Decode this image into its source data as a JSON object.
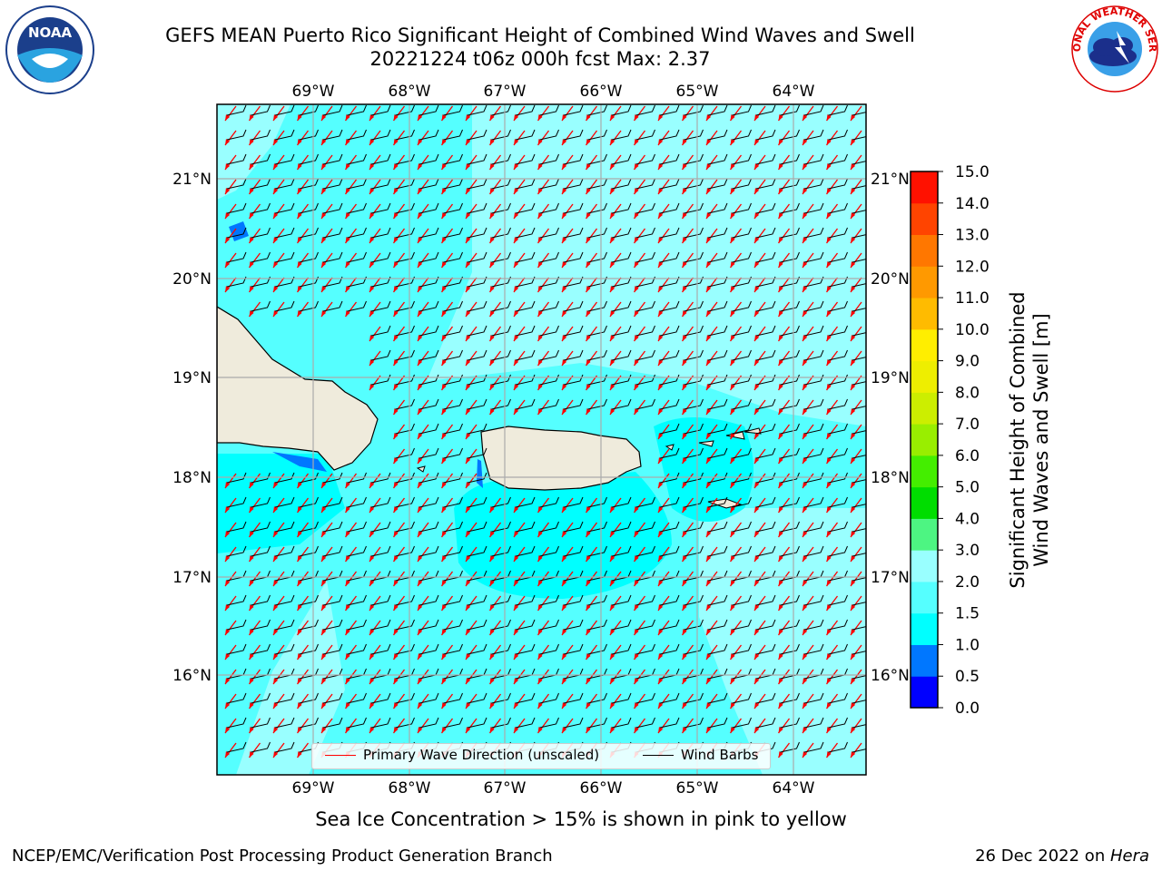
{
  "header": {
    "title_line1": "GEFS MEAN Puerto Rico Significant Height of Combined Wind Waves and Swell",
    "title_line2": "20221224 t06z 000h fcst   Max: 2.37"
  },
  "logos": {
    "left": "NOAA",
    "right_text": "NATIONAL WEATHER SERVICE"
  },
  "axes": {
    "lon_labels": [
      "69°W",
      "68°W",
      "67°W",
      "66°W",
      "65°W",
      "64°W"
    ],
    "lat_labels": [
      "21°N",
      "20°N",
      "19°N",
      "18°N",
      "17°N",
      "16°N"
    ]
  },
  "colorbar": {
    "title_line1": "Significant Height of Combined",
    "title_line2": "Wind Waves and Swell [m]",
    "ticks": [
      "0.0",
      "0.5",
      "1.0",
      "1.5",
      "2.0",
      "3.0",
      "4.0",
      "5.0",
      "6.0",
      "7.0",
      "8.0",
      "9.0",
      "10.0",
      "11.0",
      "12.0",
      "13.0",
      "14.0",
      "15.0"
    ],
    "colors": [
      "#0000ff",
      "#0077ff",
      "#00ffff",
      "#55ffff",
      "#99ffff",
      "#4df582",
      "#00dd00",
      "#44ee00",
      "#99ee00",
      "#ccee00",
      "#eeee00",
      "#ffee00",
      "#ffbb00",
      "#ff9900",
      "#ff7700",
      "#ff4400",
      "#ff1100"
    ]
  },
  "legend": {
    "wave_dir": "Primary Wave Direction (unscaled)",
    "wind_barbs": "Wind Barbs",
    "wave_color": "#ff0000",
    "barb_color": "#000000"
  },
  "footer": {
    "ice_note": "Sea Ice Concentration > 15% is shown in pink to yellow",
    "left": "NCEP/EMC/Verification Post Processing Product Generation Branch",
    "right_date": "26 Dec 2022 on ",
    "right_host": "Hera"
  }
}
